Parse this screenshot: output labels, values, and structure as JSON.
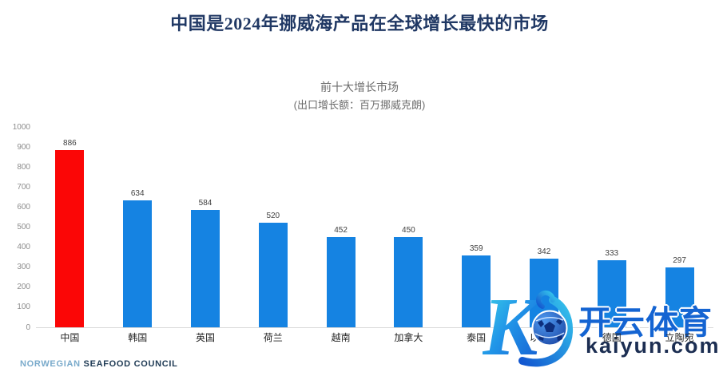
{
  "chart_data": {
    "type": "bar",
    "title": "中国是2024年挪威海产品在全球增长最快的市场",
    "subtitle": "前十大增长市场",
    "subtitle2": "(出口增长额：百万挪威克朗)",
    "categories": [
      "中国",
      "韩国",
      "英国",
      "荷兰",
      "越南",
      "加拿大",
      "泰国",
      "以色列",
      "德国",
      "立陶宛"
    ],
    "values": [
      886,
      634,
      584,
      520,
      452,
      450,
      359,
      342,
      333,
      297
    ],
    "highlight_index": 0,
    "highlight_color": "#fb0606",
    "bar_color": "#1583e2",
    "value_label_color": "#404040",
    "ylim": [
      0,
      1000
    ],
    "yticks": [
      0,
      100,
      200,
      300,
      400,
      500,
      600,
      700,
      800,
      900,
      1000
    ],
    "grid": false,
    "legend": "none",
    "value_labels": true,
    "xlabel": "",
    "ylabel": ""
  },
  "footer": {
    "brand_light": "NORWEGIAN",
    "brand_dark": "SEAFOOD COUNCIL"
  },
  "watermark": {
    "brand": "开云体育",
    "domain": "kaiyun.com",
    "logo_letter": "K",
    "logo_icon": "soccer-ball-icon",
    "brand_color": "#1464d2",
    "domain_color": "#1c2e52"
  }
}
